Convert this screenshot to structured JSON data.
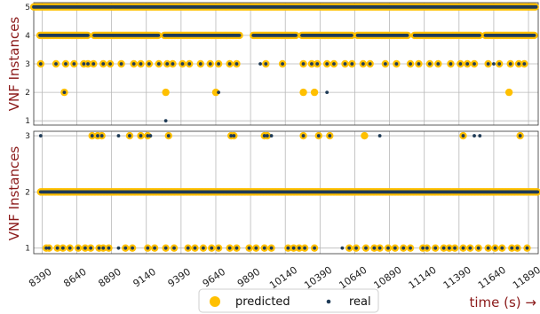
{
  "chart_data": [
    {
      "type": "scatter",
      "ylabel": "VNF Instances",
      "xlabel": "",
      "xlim": [
        8330,
        11960
      ],
      "ylim": [
        0.85,
        5.15
      ],
      "yticks": [
        "1",
        "2",
        "3",
        "4",
        "5"
      ],
      "grid": true,
      "series": [
        {
          "name": "predicted",
          "color": "#FFC000",
          "levels": [
            {
              "y": 5,
              "x": [
                [
                  8330,
                  11945
                ]
              ]
            },
            {
              "y": 4,
              "x": [
                [
                  8375,
                  8720
                ],
                [
                  8765,
                  9230
                ],
                [
                  9270,
                  9810
                ],
                [
                  9910,
                  10220
                ],
                [
                  10260,
                  10620
                ],
                [
                  10660,
                  11020
                ],
                [
                  11070,
                  11540
                ],
                [
                  11580,
                  11935
                ]
              ]
            },
            {
              "y": 3,
              "x": [
                8380,
                8490,
                8560,
                8620,
                8690,
                8720,
                8760,
                8830,
                8880,
                8960,
                9050,
                9100,
                9160,
                9230,
                9290,
                9330,
                9400,
                9450,
                9530,
                9600,
                9660,
                9740,
                9790,
                10000,
                10120,
                10270,
                10330,
                10370,
                10440,
                10490,
                10570,
                10620,
                10700,
                10750,
                10860,
                10940,
                11040,
                11100,
                11180,
                11240,
                11330,
                11400,
                11450,
                11500,
                11600,
                11680,
                11760,
                11820,
                11860
              ]
            },
            {
              "y": 2,
              "x": [
                8550,
                9280,
                9640,
                10270,
                10350,
                11750
              ]
            }
          ]
        },
        {
          "name": "real",
          "color": "#1F3B57",
          "levels": [
            {
              "y": 5,
              "x": [
                [
                  8330,
                  11945
                ]
              ]
            },
            {
              "y": 4,
              "x": [
                [
                  8375,
                  8720
                ],
                [
                  8765,
                  9230
                ],
                [
                  9270,
                  9810
                ],
                [
                  9910,
                  10220
                ],
                [
                  10260,
                  10620
                ],
                [
                  10660,
                  11020
                ],
                [
                  11070,
                  11540
                ],
                [
                  11580,
                  11935
                ]
              ]
            },
            {
              "y": 3,
              "x": [
                8380,
                8490,
                8560,
                8620,
                8690,
                8720,
                8760,
                8830,
                8880,
                8960,
                9050,
                9100,
                9160,
                9230,
                9290,
                9330,
                9400,
                9450,
                9530,
                9600,
                9660,
                9740,
                9790,
                9960,
                10000,
                10120,
                10270,
                10330,
                10370,
                10440,
                10490,
                10570,
                10620,
                10700,
                10750,
                10860,
                10940,
                11040,
                11100,
                11180,
                11240,
                11330,
                11400,
                11450,
                11500,
                11600,
                11640,
                11680,
                11760,
                11820,
                11860
              ]
            },
            {
              "y": 2,
              "x": [
                8550,
                9660,
                10440
              ]
            },
            {
              "y": 1,
              "x": [
                9280
              ]
            }
          ]
        }
      ]
    },
    {
      "type": "scatter",
      "ylabel": "VNF Instances",
      "xlabel": "time (s) →",
      "xlim": [
        8330,
        11960
      ],
      "ylim": [
        0.9,
        3.08
      ],
      "yticks": [
        "1",
        "2",
        "3"
      ],
      "xticks": [
        8390,
        8640,
        8890,
        9140,
        9390,
        9640,
        9890,
        10140,
        10390,
        10640,
        10890,
        11140,
        11390,
        11640,
        11890
      ],
      "grid": true,
      "series": [
        {
          "name": "predicted",
          "color": "#FFC000",
          "levels": [
            {
              "y": 3,
              "x": [
                8750,
                8790,
                8820,
                9020,
                9100,
                9150,
                9300,
                9750,
                9770,
                9990,
                10010,
                10270,
                10380,
                10460,
                10710,
                11420,
                11830
              ]
            },
            {
              "y": 2,
              "x": [
                [
                  8380,
                  11960
                ]
              ]
            },
            {
              "y": 1,
              "x": [
                8420,
                8440,
                8500,
                8540,
                8590,
                8650,
                8700,
                8740,
                8800,
                8830,
                8870,
                8990,
                9040,
                9150,
                9200,
                9280,
                9340,
                9440,
                9490,
                9550,
                9610,
                9660,
                9740,
                9790,
                9880,
                9930,
                9990,
                10040,
                10160,
                10200,
                10240,
                10280,
                10350,
                10600,
                10650,
                10720,
                10780,
                10820,
                10880,
                10930,
                10990,
                11040,
                11130,
                11160,
                11220,
                11280,
                11320,
                11360,
                11420,
                11470,
                11530,
                11600,
                11650,
                11700,
                11770,
                11810,
                11880
              ]
            }
          ]
        },
        {
          "name": "real",
          "color": "#1F3B57",
          "levels": [
            {
              "y": 3,
              "x": [
                8380,
                8750,
                8790,
                8820,
                8940,
                9020,
                9100,
                9150,
                9170,
                9300,
                9750,
                9770,
                9990,
                10010,
                10040,
                10270,
                10380,
                10460,
                10820,
                11420,
                11500,
                11540,
                11830
              ]
            },
            {
              "y": 2,
              "x": [
                [
                  8380,
                  11960
                ]
              ]
            },
            {
              "y": 1,
              "x": [
                8420,
                8440,
                8500,
                8540,
                8590,
                8650,
                8700,
                8740,
                8800,
                8830,
                8870,
                8940,
                8990,
                9040,
                9150,
                9200,
                9280,
                9340,
                9440,
                9490,
                9550,
                9610,
                9660,
                9740,
                9790,
                9880,
                9930,
                9990,
                10040,
                10160,
                10200,
                10240,
                10280,
                10350,
                10550,
                10600,
                10650,
                10720,
                10780,
                10820,
                10880,
                10930,
                10990,
                11040,
                11130,
                11160,
                11220,
                11280,
                11320,
                11360,
                11420,
                11470,
                11530,
                11600,
                11650,
                11700,
                11770,
                11810,
                11880
              ]
            }
          ]
        }
      ]
    }
  ],
  "legend": {
    "placement": "bottom-center",
    "items": [
      {
        "label": "predicted",
        "color": "#FFC000"
      },
      {
        "label": "real",
        "color": "#1F3B57"
      }
    ]
  }
}
